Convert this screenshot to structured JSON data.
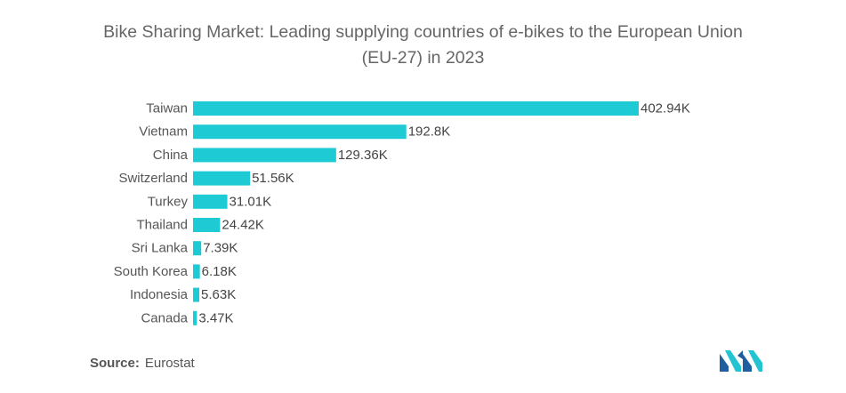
{
  "chart_data": {
    "type": "bar",
    "orientation": "horizontal",
    "title_lines": [
      "Bike Sharing Market: Leading supplying countries of e-bikes to the European Union",
      "(EU-27) in 2023"
    ],
    "categories": [
      "Taiwan",
      "Vietnam",
      "China",
      "Switzerland",
      "Turkey",
      "Thailand",
      "Sri Lanka",
      "South Korea",
      "Indonesia",
      "Canada"
    ],
    "values": [
      402.94,
      192.8,
      129.36,
      51.56,
      31.01,
      24.42,
      7.39,
      6.18,
      5.63,
      3.47
    ],
    "value_labels": [
      "402.94K",
      "192.8K",
      "129.36K",
      "51.56K",
      "31.01K",
      "24.42K",
      "7.39K",
      "6.18K",
      "5.63K",
      "3.47K"
    ],
    "unit_suffix": "K",
    "xlim": [
      0,
      402.94
    ],
    "grid": false,
    "legend": "none",
    "bar_color": "#1ECBD5"
  },
  "source": {
    "label": "Source:",
    "value": "Eurostat"
  },
  "logo": {
    "icon": "mordor-intelligence-logo-icon",
    "colors": [
      "#1F5FA0",
      "#22C4D2"
    ]
  }
}
